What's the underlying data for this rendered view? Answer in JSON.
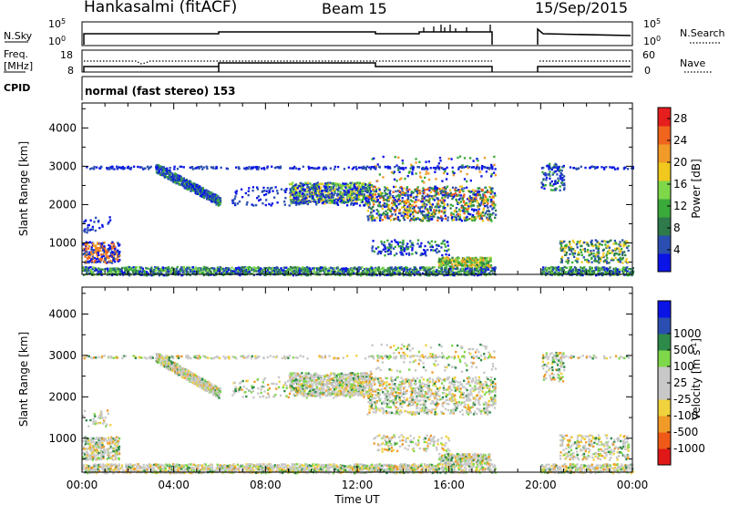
{
  "header": {
    "station": "Hankasalmi (fitACF)",
    "beam": "Beam 15",
    "date": "15/Sep/2015"
  },
  "panels": {
    "nsky": {
      "label": "N.Sky",
      "tick_top": "10^5",
      "tick_bottom": "10^0",
      "right_label": "N.Search",
      "right_tick_top": "10^5",
      "right_tick_bottom": "10^0"
    },
    "freq": {
      "label_line1": "Freq.",
      "label_line2": "[MHz]",
      "tick_top": "18",
      "tick_bottom": "8",
      "right_label": "Nave",
      "right_tick_top": "60",
      "right_tick_bottom": "0"
    },
    "cpid": {
      "label": "CPID",
      "value": "normal (fast stereo) 153"
    }
  },
  "colors": {
    "trace": "#000000",
    "power_scale": [
      "#0a14e6",
      "#2a4fb0",
      "#2e7a4a",
      "#3aaa3a",
      "#7ed84a",
      "#f0c81e",
      "#f09a28",
      "#f0641e",
      "#e61e1e"
    ],
    "velocity_scale": [
      "#e01818",
      "#f05a18",
      "#f09a28",
      "#f0d23c",
      "#c8c8c8",
      "#c8c8c8",
      "#7ed84a",
      "#2e8a4a",
      "#2a4fb0",
      "#0a14e6"
    ]
  },
  "chart_data": [
    {
      "type": "heatmap",
      "title": "",
      "xlabel": "Time UT",
      "ylabel": "Slant Range [km]",
      "colorbar_label": "Power [dB]",
      "x_ticks": [
        "00:00",
        "04:00",
        "08:00",
        "12:00",
        "16:00",
        "20:00",
        "00:00"
      ],
      "x_range_hours": [
        0,
        24
      ],
      "y_ticks": [
        1000,
        2000,
        3000,
        4000
      ],
      "y_range_km": [
        180,
        4650
      ],
      "colorbar_ticks": [
        4,
        8,
        12,
        16,
        20,
        24,
        28
      ],
      "colorbar_range": [
        0,
        30
      ],
      "data_gap_hours": [
        18,
        20
      ]
    },
    {
      "type": "heatmap",
      "title": "",
      "xlabel": "Time UT",
      "ylabel": "Slant Range [km]",
      "colorbar_label": "Velocity [m s^-1]",
      "x_ticks": [
        "00:00",
        "04:00",
        "08:00",
        "12:00",
        "16:00",
        "20:00",
        "00:00"
      ],
      "x_range_hours": [
        0,
        24
      ],
      "y_ticks": [
        1000,
        2000,
        3000,
        4000
      ],
      "y_range_km": [
        180,
        4650
      ],
      "colorbar_ticks": [
        -1000,
        -500,
        -100,
        -25,
        25,
        100,
        500,
        1000
      ],
      "data_gap_hours": [
        18,
        20
      ]
    }
  ]
}
